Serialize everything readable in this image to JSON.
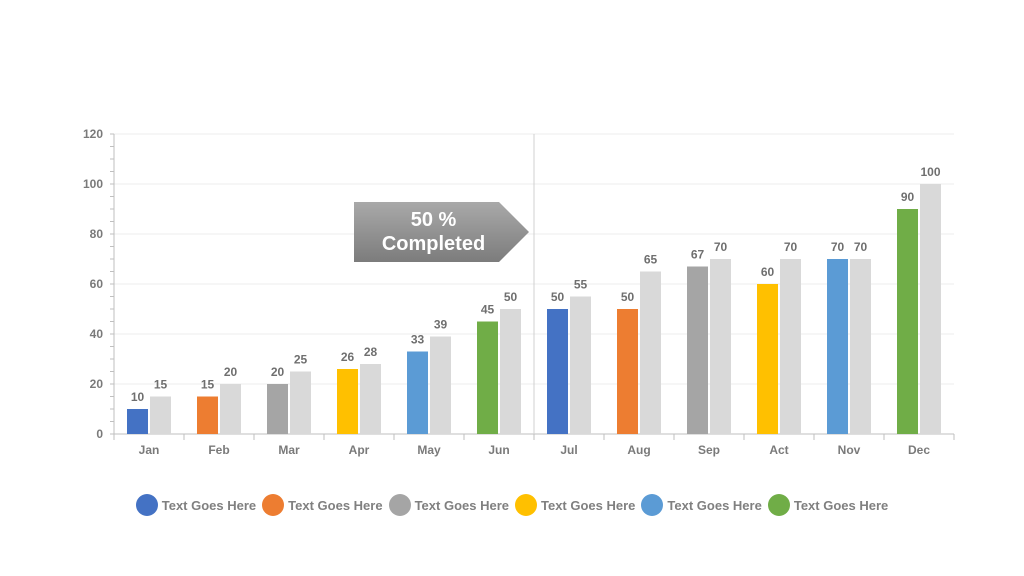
{
  "chart_data": {
    "type": "bar",
    "categories": [
      "Jan",
      "Feb",
      "Mar",
      "Apr",
      "May",
      "Jun",
      "Jul",
      "Aug",
      "Sep",
      "Act",
      "Nov",
      "Dec"
    ],
    "series": [
      {
        "values": [
          10,
          15,
          20,
          26,
          33,
          45,
          50,
          50,
          67,
          60,
          70,
          90
        ]
      },
      {
        "values": [
          15,
          20,
          25,
          28,
          39,
          50,
          55,
          65,
          70,
          70,
          70,
          100
        ]
      }
    ],
    "ylim": [
      0,
      120
    ],
    "yticks": [
      0,
      20,
      40,
      60,
      80,
      100,
      120
    ],
    "grid": true,
    "legend_position": "bottom",
    "annotation": {
      "line1": "50 %",
      "line2": "Completed"
    }
  },
  "colors": {
    "category_colors": [
      "#4472c4",
      "#ed7d31",
      "#a5a5a5",
      "#ffc000",
      "#5b9bd5",
      "#70ad47",
      "#4472c4",
      "#ed7d31",
      "#a5a5a5",
      "#ffc000",
      "#5b9bd5",
      "#70ad47"
    ],
    "secondary": "#d9d9d9",
    "grid": "#ececec",
    "axis": "#bfbfbf"
  },
  "legend": [
    {
      "label": "Text Goes Here",
      "color": "#4472c4"
    },
    {
      "label": "Text Goes Here",
      "color": "#ed7d31"
    },
    {
      "label": "Text Goes Here",
      "color": "#a5a5a5"
    },
    {
      "label": "Text Goes Here",
      "color": "#ffc000"
    },
    {
      "label": "Text Goes Here",
      "color": "#5b9bd5"
    },
    {
      "label": "Text Goes Here",
      "color": "#70ad47"
    }
  ]
}
